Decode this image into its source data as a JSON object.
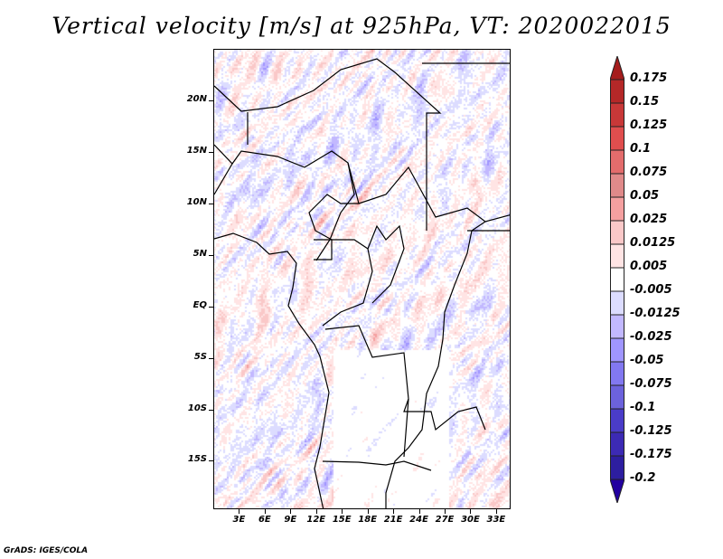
{
  "title": "Vertical velocity [m/s] at 925hPa, VT: 2020022015",
  "footer": "GrADS: IGES/COLA",
  "map": {
    "lon_range": [
      0,
      34.7
    ],
    "lat_range": [
      -19.7,
      25
    ],
    "lat_labels": [
      {
        "lat": 20,
        "text": "20N"
      },
      {
        "lat": 15,
        "text": "15N"
      },
      {
        "lat": 10,
        "text": "10N"
      },
      {
        "lat": 5,
        "text": "5N"
      },
      {
        "lat": 0,
        "text": "EQ"
      },
      {
        "lat": -5,
        "text": "5S"
      },
      {
        "lat": -10,
        "text": "10S"
      },
      {
        "lat": -15,
        "text": "15S"
      }
    ],
    "lon_labels": [
      {
        "lon": 3,
        "text": "3E"
      },
      {
        "lon": 6,
        "text": "6E"
      },
      {
        "lon": 9,
        "text": "9E"
      },
      {
        "lon": 12,
        "text": "12E"
      },
      {
        "lon": 15,
        "text": "15E"
      },
      {
        "lon": 18,
        "text": "18E"
      },
      {
        "lon": 21,
        "text": "21E"
      },
      {
        "lon": 24,
        "text": "24E"
      },
      {
        "lon": 27,
        "text": "27E"
      },
      {
        "lon": 30,
        "text": "30E"
      },
      {
        "lon": 33,
        "text": "33E"
      }
    ]
  },
  "colorbar": {
    "labels": [
      "0.175",
      "0.15",
      "0.125",
      "0.1",
      "0.075",
      "0.05",
      "0.025",
      "0.0125",
      "0.005",
      "-0.005",
      "-0.0125",
      "-0.025",
      "-0.05",
      "-0.075",
      "-0.1",
      "-0.125",
      "-0.175",
      "-0.2"
    ],
    "colors": [
      "#a51c1c",
      "#b42828",
      "#c83838",
      "#e04e4e",
      "#e36c6c",
      "#e08a8a",
      "#f5a0a0",
      "#fac8c8",
      "#ffe4e4",
      "#ffffff",
      "#dcdcff",
      "#c2b8ff",
      "#a096ff",
      "#8278f0",
      "#6c62dc",
      "#4a3cc8",
      "#3c2ab4",
      "#2d1ea0",
      "#2200a0"
    ]
  }
}
